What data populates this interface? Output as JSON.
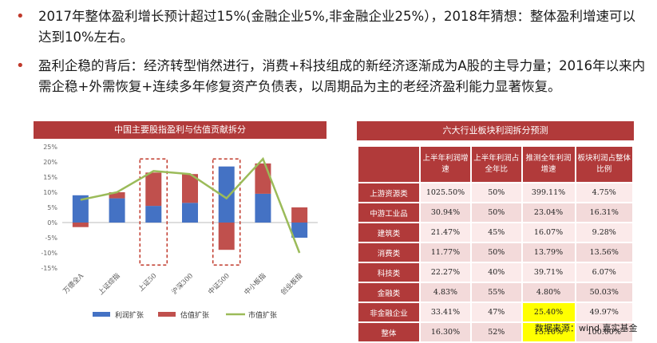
{
  "bullets": [
    "2017年整体盈利增长预计超过15%(金融企业5%,非金融企业25%），2018年猜想：整体盈利增速可以达到10%左右。",
    "盈利企稳的背后：经济转型悄然进行，消费+科技组成的新经济逐渐成为A股的主导力量；2016年以来内需企稳+外需恢复+连续多年修复资产负债表，以周期品为主的老经济盈利能力显著恢复。"
  ],
  "chart_title": "中国主要股指盈利与估值贡献拆分",
  "table_title": "六大行业板块利润拆分预测",
  "source": "数据来源：wind 嘉实基金",
  "colors": {
    "accent": "#b13a3a",
    "blue": "#4472c4",
    "red": "#c0504d",
    "green": "#9bbb59",
    "highlight": "#ffff00"
  },
  "chart_data": {
    "type": "bar",
    "title": "中国主要股指盈利与估值贡献拆分",
    "categories": [
      "万德全A",
      "上证综指",
      "上证50",
      "沪深300",
      "中证500",
      "中小板指",
      "创业板指"
    ],
    "ylim": [
      -15,
      25
    ],
    "yticks": [
      "25%",
      "20%",
      "15%",
      "10%",
      "5%",
      "0%",
      "-5%",
      "-10%",
      "-15%"
    ],
    "series": [
      {
        "name": "利润扩张",
        "type": "bar",
        "values": [
          9,
          8,
          5.5,
          6.5,
          18.5,
          9.5,
          -5
        ]
      },
      {
        "name": "估值扩张",
        "type": "bar",
        "values": [
          -1.5,
          2,
          11,
          9.5,
          -9,
          10,
          5
        ]
      },
      {
        "name": "市值扩张",
        "type": "line",
        "values": [
          7.5,
          10,
          17,
          16,
          8,
          21,
          -10
        ]
      }
    ],
    "highlighted": [
      "上证50",
      "中证500"
    ],
    "legend_position": "bottom"
  },
  "table": {
    "headers": [
      "",
      "上半年利润增速",
      "上半年利润占全年比",
      "推测全年利润增速",
      "板块利润占整体比例"
    ],
    "rows": [
      [
        "上游资源类",
        "1025.50%",
        "50%",
        "399.11%",
        "4.75%"
      ],
      [
        "中游工业品",
        "30.94%",
        "50%",
        "23.04%",
        "16.31%"
      ],
      [
        "建筑类",
        "21.47%",
        "45%",
        "16.07%",
        "9.28%"
      ],
      [
        "消费类",
        "11.77%",
        "50%",
        "13.79%",
        "13.56%"
      ],
      [
        "科技类",
        "22.27%",
        "40%",
        "39.71%",
        "6.07%"
      ],
      [
        "金融类",
        "4.83%",
        "55%",
        "4.80%",
        "50.03%"
      ],
      [
        "非金融企业",
        "33.41%",
        "47%",
        "25.40%",
        "49.97%"
      ],
      [
        "整体",
        "16.30%",
        "52%",
        "15.10%",
        "100.00%"
      ]
    ],
    "highlight_cells": [
      [
        6,
        3
      ],
      [
        7,
        3
      ]
    ]
  }
}
